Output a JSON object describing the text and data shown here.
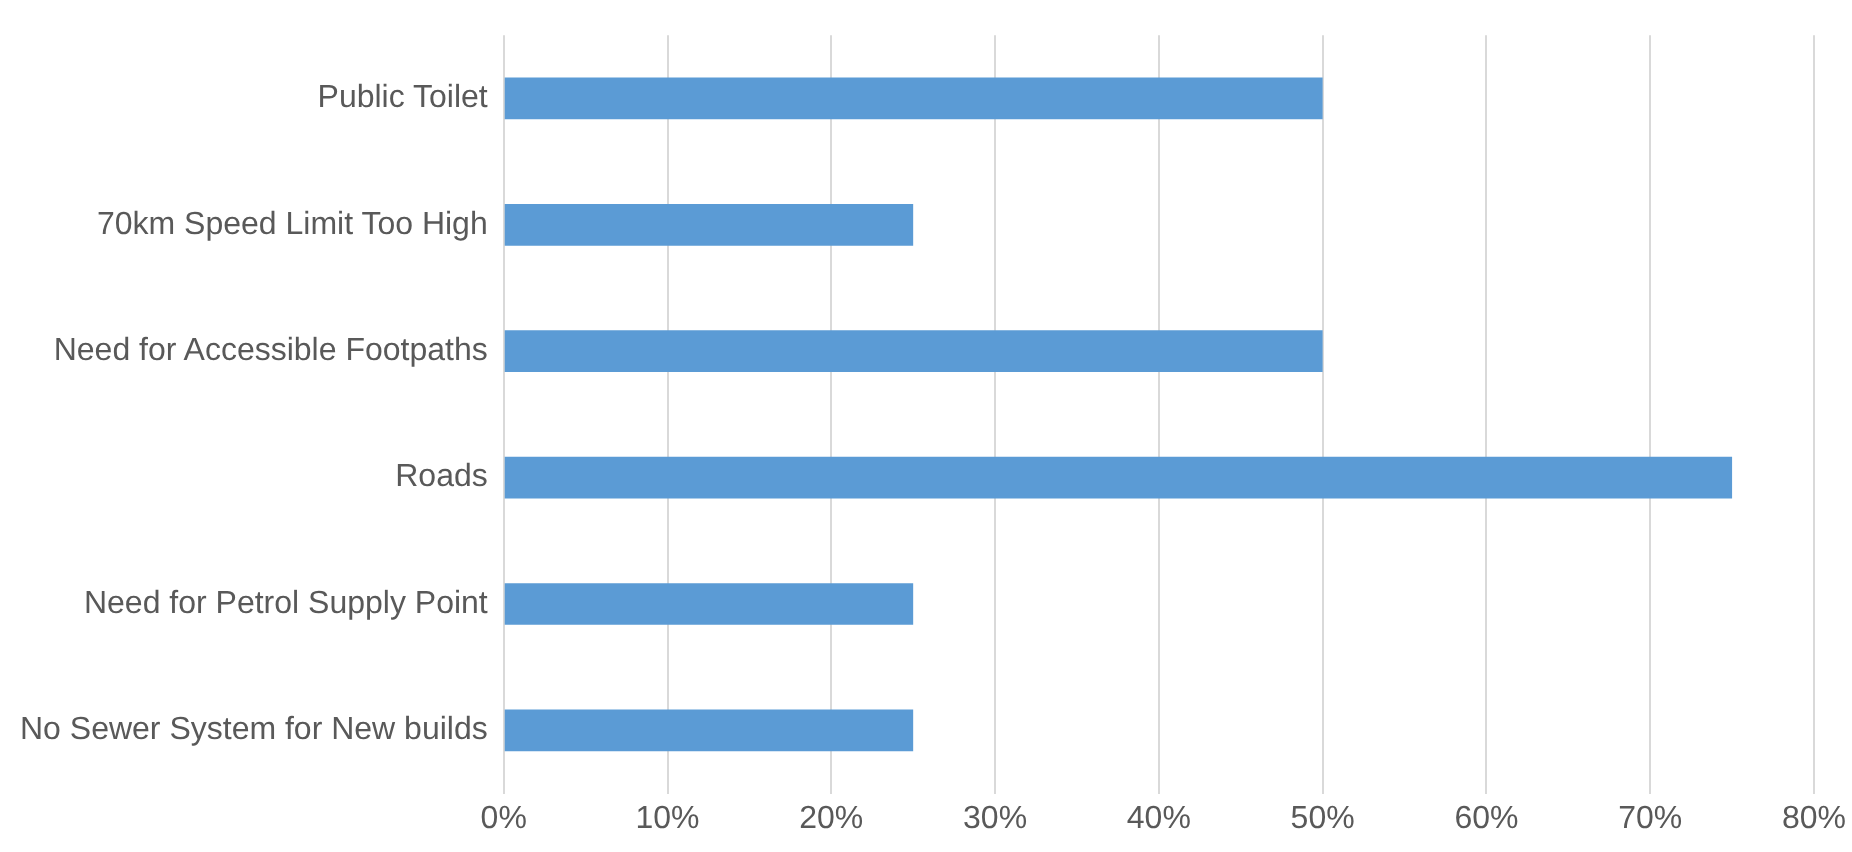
{
  "chart_data": {
    "type": "bar",
    "orientation": "horizontal",
    "categories": [
      "Public Toilet",
      "70km Speed Limit Too High",
      "Need for Accessible Footpaths",
      "Roads",
      "Need for Petrol Supply Point",
      "No Sewer System for New builds"
    ],
    "values": [
      50,
      25,
      50,
      75,
      25,
      25
    ],
    "color": "#5b9bd5",
    "xlim": [
      0,
      80
    ],
    "xticks": [
      {
        "value": 0,
        "label": "0%"
      },
      {
        "value": 10,
        "label": "10%"
      },
      {
        "value": 20,
        "label": "20%"
      },
      {
        "value": 30,
        "label": "30%"
      },
      {
        "value": 40,
        "label": "40%"
      },
      {
        "value": 50,
        "label": "50%"
      },
      {
        "value": 60,
        "label": "60%"
      },
      {
        "value": 70,
        "label": "70%"
      },
      {
        "value": 80,
        "label": "80%"
      }
    ],
    "grid": "x",
    "legend": false
  }
}
